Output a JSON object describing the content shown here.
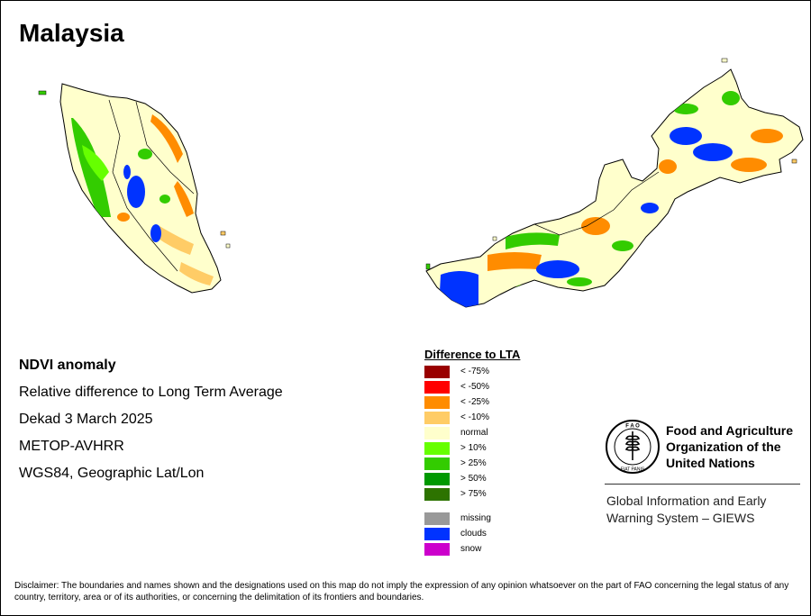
{
  "title": "Malaysia",
  "info": {
    "product": "NDVI anomaly",
    "description": "Relative difference to Long Term Average",
    "period": "Dekad 3 March 2025",
    "sensor": "METOP-AVHRR",
    "projection": "WGS84, Geographic Lat/Lon"
  },
  "legend": {
    "title": "Difference to LTA",
    "classes": [
      {
        "label": "< -75%",
        "color": "#990000"
      },
      {
        "label": "< -50%",
        "color": "#ff0000"
      },
      {
        "label": "< -25%",
        "color": "#ff8c00"
      },
      {
        "label": "< -10%",
        "color": "#ffcc66"
      },
      {
        "label": "normal",
        "color": "#ffffcc"
      },
      {
        "label": "> 10%",
        "color": "#66ff00"
      },
      {
        "label": "> 25%",
        "color": "#33cc00"
      },
      {
        "label": "> 50%",
        "color": "#009900"
      },
      {
        "label": "> 75%",
        "color": "#2d7300"
      }
    ],
    "extra": [
      {
        "label": "missing",
        "color": "#999999"
      },
      {
        "label": "clouds",
        "color": "#0033ff"
      },
      {
        "label": "snow",
        "color": "#cc00cc"
      }
    ]
  },
  "fao": {
    "line1": "Food and Agriculture",
    "line2": "Organization of the",
    "line3": "United Nations",
    "giews1": "Global Information and Early",
    "giews2": "Warning System – GIEWS",
    "logo_text": "FAO FIAT PANIS"
  },
  "disclaimer": "Disclaimer: The boundaries and names shown and the designations used on this map do not imply the expression of any opinion whatsoever on the part of FAO concerning the legal status of any country, territory, area or of its authorities, or concerning the delimitation of its frontiers and boundaries."
}
